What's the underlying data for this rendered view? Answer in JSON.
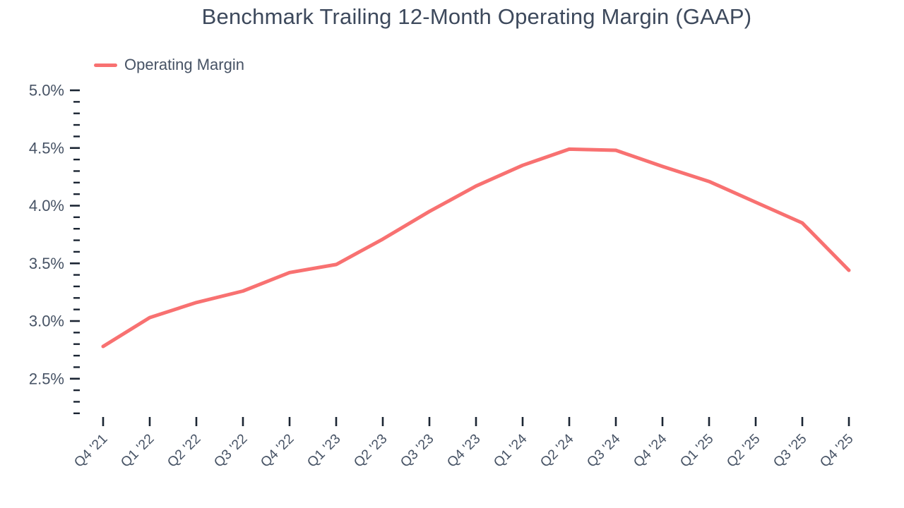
{
  "chart_data": {
    "type": "line",
    "title": "Benchmark Trailing 12-Month Operating Margin (GAAP)",
    "categories": [
      "Q4 '21",
      "Q1 '22",
      "Q2 '22",
      "Q3 '22",
      "Q4 '22",
      "Q1 '23",
      "Q2 '23",
      "Q3 '23",
      "Q4 '23",
      "Q1 '24",
      "Q2 '24",
      "Q3 '24",
      "Q4 '24",
      "Q1 '25",
      "Q2 '25",
      "Q3 '25",
      "Q4 '25"
    ],
    "series": [
      {
        "name": "Operating Margin",
        "color": "#f87171",
        "values": [
          2.78,
          3.03,
          3.16,
          3.26,
          3.42,
          3.49,
          3.71,
          3.95,
          4.17,
          4.35,
          4.49,
          4.48,
          4.34,
          4.21,
          4.03,
          3.85,
          3.44
        ]
      }
    ],
    "xlabel": "",
    "ylabel": "",
    "ylim": [
      2.2,
      5.0
    ],
    "y_ticks": [
      {
        "value": 5.0,
        "label": "5.0%"
      },
      {
        "value": 4.5,
        "label": "4.5%"
      },
      {
        "value": 4.0,
        "label": "4.0%"
      },
      {
        "value": 3.5,
        "label": "3.5%"
      },
      {
        "value": 3.0,
        "label": "3.0%"
      },
      {
        "value": 2.5,
        "label": "2.5%"
      }
    ],
    "y_minor_step": 0.1,
    "grid": false,
    "legend_position": "top-left",
    "value_format": "percent"
  },
  "styles": {
    "line_color": "#f87171",
    "title_color": "#3d495c",
    "label_color": "#475365",
    "tick_color": "#1b2533",
    "background": "#ffffff"
  }
}
